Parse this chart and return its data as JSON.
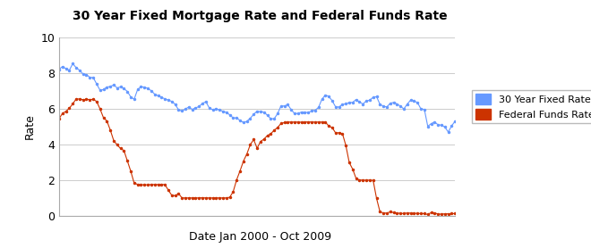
{
  "title": "30 Year Fixed Mortgage Rate and Federal Funds Rate",
  "xlabel": "Date Jan 2000 - Oct 2009",
  "ylabel": "Rate",
  "ylim": [
    0,
    10
  ],
  "yticks": [
    0,
    2,
    4,
    6,
    8,
    10
  ],
  "legend_labels": [
    "30 Year Fixed Rate",
    "Federal Funds Rate"
  ],
  "line1_color": "#6699FF",
  "line2_color": "#CC3300",
  "bg_color": "#FFFFFF",
  "plot_bg_color": "#FFFFFF",
  "grid_color": "#CCCCCC",
  "mortgage_rates": [
    8.21,
    8.36,
    8.24,
    8.15,
    8.52,
    8.29,
    8.15,
    7.94,
    7.91,
    7.75,
    7.74,
    7.38,
    7.03,
    7.07,
    7.21,
    7.24,
    7.33,
    7.16,
    7.22,
    7.12,
    6.96,
    6.65,
    6.53,
    7.07,
    7.22,
    7.21,
    7.13,
    7.0,
    6.81,
    6.72,
    6.63,
    6.55,
    6.47,
    6.41,
    6.24,
    5.93,
    5.87,
    5.98,
    6.09,
    5.96,
    6.04,
    6.12,
    6.29,
    6.39,
    6.03,
    5.94,
    5.99,
    5.93,
    5.85,
    5.79,
    5.65,
    5.48,
    5.48,
    5.34,
    5.22,
    5.29,
    5.46,
    5.68,
    5.86,
    5.82,
    5.81,
    5.63,
    5.44,
    5.43,
    5.72,
    6.15,
    6.15,
    6.22,
    5.94,
    5.72,
    5.73,
    5.81,
    5.78,
    5.79,
    5.87,
    5.91,
    6.07,
    6.53,
    6.76,
    6.69,
    6.44,
    6.1,
    6.09,
    6.24,
    6.27,
    6.34,
    6.35,
    6.51,
    6.37,
    6.26,
    6.43,
    6.47,
    6.64,
    6.67,
    6.24,
    6.14,
    6.09,
    6.3,
    6.35,
    6.26,
    6.14,
    5.98,
    6.26,
    6.48,
    6.43,
    6.34,
    5.98,
    5.96,
    5.01,
    5.16,
    5.25,
    5.1,
    5.07,
    4.97,
    4.69,
    5.04,
    5.29
  ],
  "fed_funds_rates": [
    5.45,
    5.73,
    5.85,
    6.02,
    6.27,
    6.54,
    6.54,
    6.5,
    6.52,
    6.51,
    6.52,
    6.4,
    5.98,
    5.49,
    5.31,
    4.8,
    4.21,
    3.97,
    3.77,
    3.65,
    3.07,
    2.49,
    1.82,
    1.76,
    1.73,
    1.74,
    1.73,
    1.75,
    1.75,
    1.75,
    1.75,
    1.75,
    1.43,
    1.15,
    1.12,
    1.24,
    1.0,
    1.0,
    1.0,
    1.0,
    1.0,
    1.0,
    1.01,
    1.0,
    1.0,
    1.0,
    1.0,
    1.0,
    1.0,
    1.0,
    1.04,
    1.35,
    2.01,
    2.51,
    3.06,
    3.46,
    3.98,
    4.27,
    3.78,
    4.16,
    4.29,
    4.49,
    4.59,
    4.79,
    4.94,
    5.17,
    5.22,
    5.25,
    5.25,
    5.25,
    5.25,
    5.24,
    5.25,
    5.26,
    5.25,
    5.25,
    5.25,
    5.25,
    5.25,
    5.02,
    4.94,
    4.64,
    4.65,
    4.6,
    3.94,
    2.98,
    2.61,
    2.09,
    2.0,
    2.0,
    1.99,
    2.0,
    1.98,
    0.97,
    0.22,
    0.16,
    0.15,
    0.22,
    0.18,
    0.16,
    0.13,
    0.13,
    0.16,
    0.15,
    0.13,
    0.14,
    0.12,
    0.12,
    0.07,
    0.18,
    0.16,
    0.1,
    0.09,
    0.11,
    0.11,
    0.12,
    0.12
  ]
}
